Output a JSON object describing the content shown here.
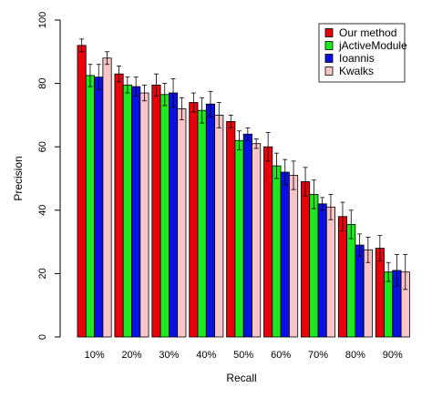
{
  "chart_data": {
    "type": "bar",
    "xlabel": "Recall",
    "ylabel": "Precision",
    "ylim": [
      0,
      100
    ],
    "yticks": [
      0,
      20,
      40,
      60,
      80,
      100
    ],
    "grid": false,
    "legend_position": "top-right",
    "categories": [
      "10%",
      "20%",
      "30%",
      "40%",
      "50%",
      "60%",
      "70%",
      "80%",
      "90%"
    ],
    "series": [
      {
        "name": "Our method",
        "color": "#e8000b",
        "values": [
          92,
          83,
          79.5,
          74,
          68,
          60,
          49,
          38,
          28
        ],
        "errors": [
          2,
          2.5,
          3.5,
          3,
          2,
          4.5,
          4.5,
          4.5,
          4
        ]
      },
      {
        "name": "jActiveModule",
        "color": "#1ee81e",
        "values": [
          82.5,
          79.5,
          76.5,
          71.5,
          62,
          54,
          45,
          35.5,
          20.5
        ],
        "errors": [
          3.5,
          2.5,
          3.5,
          4,
          3,
          4,
          4.5,
          4.5,
          3
        ]
      },
      {
        "name": "Ioannis",
        "color": "#0a10e0",
        "values": [
          82,
          79,
          77,
          73.5,
          64,
          52,
          42,
          29,
          21
        ],
        "errors": [
          4,
          3,
          4.5,
          4,
          2,
          4,
          2,
          3.5,
          5
        ]
      },
      {
        "name": "Kwalks",
        "color": "#f7c4c8",
        "values": [
          88,
          77,
          72,
          70,
          61,
          51,
          41,
          27.5,
          20.5
        ],
        "errors": [
          2,
          2.5,
          3.5,
          4,
          1.5,
          4.5,
          4,
          4,
          5.5
        ]
      }
    ]
  }
}
